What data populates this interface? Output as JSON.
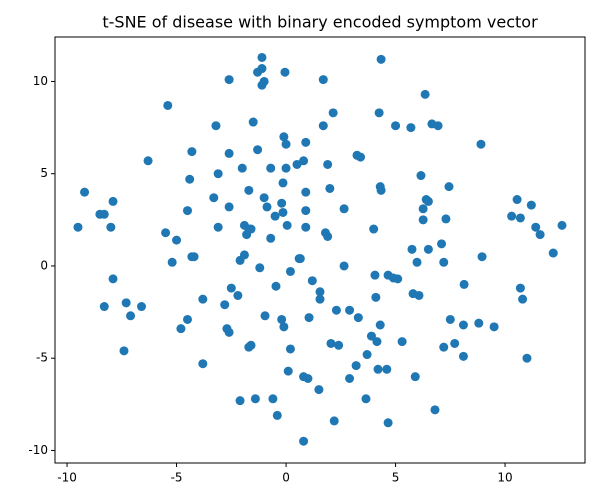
{
  "chart_data": {
    "type": "scatter",
    "title": "t-SNE of disease with binary encoded symptom vector",
    "color": "#1f77b4",
    "xlim": [
      -10.55,
      13.65
    ],
    "ylim": [
      -10.68,
      12.41
    ],
    "xticks": [
      -10,
      -5,
      0,
      5,
      10
    ],
    "yticks": [
      -10,
      -5,
      0,
      5,
      10
    ],
    "x": [
      -9.5,
      -9.2,
      -8.5,
      -8.3,
      -7.9,
      -8.0,
      -8.3,
      -7.9,
      -7.3,
      -7.1,
      -6.6,
      -7.4,
      -6.3,
      -5.4,
      -5.5,
      -5.2,
      -5.0,
      -4.8,
      -4.5,
      -4.5,
      -4.4,
      -4.3,
      -4.3,
      -4.2,
      -3.8,
      -3.8,
      -3.2,
      -3.3,
      -3.1,
      -3.1,
      -2.8,
      -2.7,
      -2.6,
      -2.6,
      -2.6,
      -2.6,
      -2.5,
      -2.2,
      -2.1,
      -2.0,
      -2.1,
      -1.9,
      -1.9,
      -1.8,
      -1.7,
      -1.7,
      -1.7,
      -1.6,
      -1.6,
      -1.5,
      -1.4,
      -1.3,
      -1.2,
      -1.3,
      -1.1,
      -1.1,
      -1.1,
      -1.0,
      -1.0,
      -0.96,
      -0.87,
      -0.7,
      -0.7,
      -0.6,
      -0.5,
      -0.46,
      -0.4,
      -0.2,
      -0.2,
      -0.14,
      -0.14,
      -0.1,
      -0.05,
      0,
      0,
      -0.1,
      0.05,
      0.2,
      0.2,
      0.1,
      0.5,
      0.6,
      0.65,
      0.8,
      0.8,
      0.9,
      0.9,
      0.9,
      0.9,
      0.8,
      1.0,
      1.05,
      1.2,
      1.5,
      1.55,
      1.55,
      1.7,
      1.7,
      1.8,
      1.9,
      1.9,
      2.0,
      2.05,
      2.15,
      2.2,
      2.3,
      2.4,
      2.65,
      2.65,
      2.9,
      2.9,
      3.2,
      3.24,
      3.4,
      3.3,
      3.65,
      3.7,
      3.9,
      4.0,
      4.06,
      4.1,
      4.15,
      4.2,
      4.25,
      4.3,
      4.3,
      4.34,
      4.34,
      4.6,
      4.66,
      4.66,
      4.9,
      5.0,
      5.1,
      5.3,
      5.7,
      5.75,
      5.8,
      5.9,
      5.98,
      6.07,
      6.16,
      6.26,
      6.26,
      6.35,
      6.4,
      6.5,
      6.5,
      6.66,
      6.8,
      6.94,
      7.1,
      7.2,
      7.2,
      7.3,
      7.44,
      7.5,
      7.7,
      8.1,
      8.1,
      8.13,
      8.8,
      8.9,
      8.95,
      9.5,
      10.3,
      10.55,
      10.7,
      10.7,
      10.8,
      11.0,
      11.2,
      11.4,
      11.6,
      12.2,
      12.6
    ],
    "y": [
      2.1,
      4.0,
      2.8,
      2.8,
      3.5,
      2.1,
      -2.2,
      -0.7,
      -2.0,
      -2.7,
      -2.2,
      -4.6,
      5.7,
      8.7,
      1.8,
      0.2,
      1.4,
      -3.4,
      -2.9,
      3.0,
      4.7,
      6.2,
      0.5,
      0.5,
      -1.8,
      -5.3,
      7.6,
      3.7,
      2.1,
      5.0,
      -2.1,
      -3.4,
      -3.6,
      3.2,
      6.1,
      10.1,
      -1.2,
      -1.6,
      0.3,
      5.3,
      -7.3,
      0.6,
      2.2,
      1.7,
      4.1,
      2.0,
      -4.4,
      -4.3,
      2.0,
      7.8,
      -7.2,
      6.3,
      -0.1,
      10.5,
      10.7,
      11.3,
      9.8,
      10.0,
      3.7,
      -2.7,
      3.2,
      5.3,
      1.5,
      -7.2,
      2.7,
      -1.1,
      -8.1,
      -2.9,
      3.4,
      2.9,
      4.5,
      7.0,
      10.5,
      6.6,
      5.3,
      -3.3,
      2.2,
      -0.3,
      -4.5,
      -5.7,
      5.5,
      0.4,
      0.4,
      -6.0,
      5.7,
      6.7,
      4.0,
      3.0,
      2.1,
      -9.5,
      -6.1,
      -2.8,
      -0.8,
      -6.7,
      -1.4,
      -1.8,
      7.6,
      10.1,
      1.8,
      5.5,
      1.6,
      4.2,
      -4.2,
      8.3,
      -8.4,
      -2.4,
      -4.3,
      3.1,
      0.0,
      -6.1,
      -2.4,
      -5.4,
      6.0,
      5.9,
      -2.8,
      -7.2,
      -4.8,
      -3.8,
      2.0,
      -0.5,
      -1.7,
      -4.1,
      -5.6,
      8.3,
      4.3,
      -3.2,
      4.1,
      11.2,
      -5.6,
      -0.5,
      -8.5,
      -0.65,
      7.6,
      -0.7,
      -4.1,
      7.5,
      0.9,
      -1.5,
      -6.0,
      0.2,
      -1.6,
      4.9,
      3.1,
      2.5,
      9.3,
      3.6,
      3.5,
      0.9,
      7.7,
      -7.8,
      7.6,
      1.2,
      0.2,
      -4.4,
      2.55,
      4.3,
      -2.9,
      -4.2,
      -3.2,
      -4.9,
      -1.0,
      -3.1,
      6.6,
      0.5,
      -3.3,
      2.7,
      3.6,
      2.6,
      -1.2,
      -1.8,
      -5.0,
      3.3,
      2.1,
      1.7,
      0.7,
      2.2
    ]
  }
}
